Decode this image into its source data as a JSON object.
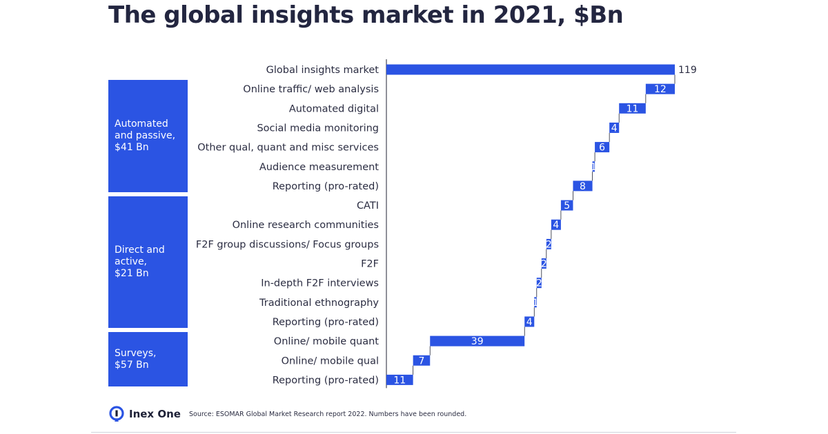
{
  "title": "The global insights market in 2021, $Bn",
  "groups": [
    {
      "label": "Automated\nand passive,\n$41 Bn"
    },
    {
      "label": "Direct and\nactive,\n$21 Bn"
    },
    {
      "label": "Surveys,\n$57 Bn"
    }
  ],
  "footer": {
    "brand": "Inex One",
    "source": "Source: ESOMAR Global Market Research report 2022. Numbers have been rounded."
  },
  "colors": {
    "bar": "#2b54e3",
    "text": "#2b2d42",
    "title": "#232640"
  },
  "chart_data": {
    "type": "bar",
    "subtype": "waterfall",
    "title": "The global insights market in 2021, $Bn",
    "categories": [
      "Global insights market",
      "Online traffic/ web analysis",
      "Automated digital",
      "Social media monitoring",
      "Other qual, quant and misc services",
      "Audience measurement",
      "Reporting (pro-rated)",
      "CATI",
      "Online research communities",
      "F2F group discussions/ Focus groups",
      "F2F",
      "In-depth F2F interviews",
      "Traditional ethnography",
      "Reporting (pro-rated)",
      "Online/ mobile quant",
      "Online/ mobile qual",
      "Reporting (pro-rated)"
    ],
    "values": [
      119,
      12,
      11,
      4,
      6,
      1,
      8,
      5,
      4,
      2,
      2,
      2,
      1,
      4,
      39,
      7,
      11
    ],
    "labels": [
      "119",
      "12",
      "11",
      "4",
      "6",
      "1",
      "8",
      "5",
      "4",
      "2",
      "2",
      "2",
      "1",
      "4",
      "39",
      "7",
      "11"
    ],
    "xlim": [
      0,
      119
    ],
    "total_index": 0
  }
}
